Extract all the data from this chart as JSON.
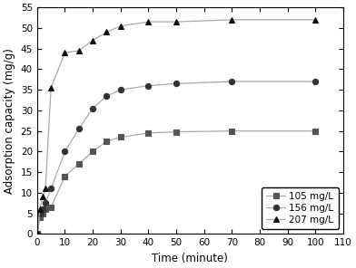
{
  "series": [
    {
      "label": "105 mg/L",
      "marker": "s",
      "color": "#555555",
      "x": [
        0,
        1,
        2,
        3,
        5,
        10,
        15,
        20,
        25,
        30,
        40,
        50,
        70,
        100
      ],
      "y": [
        0,
        4.0,
        5.0,
        6.0,
        6.5,
        14.0,
        17.0,
        20.0,
        22.5,
        23.5,
        24.5,
        24.8,
        25.0,
        25.0
      ]
    },
    {
      "label": "156 mg/L",
      "marker": "o",
      "color": "#333333",
      "x": [
        0,
        1,
        2,
        3,
        5,
        10,
        15,
        20,
        25,
        30,
        40,
        50,
        70,
        100
      ],
      "y": [
        0,
        5.0,
        6.0,
        7.5,
        11.0,
        20.0,
        25.5,
        30.5,
        33.5,
        35.0,
        36.0,
        36.5,
        37.0,
        37.0
      ]
    },
    {
      "label": "207 mg/L",
      "marker": "^",
      "color": "#111111",
      "x": [
        0,
        1,
        2,
        3,
        5,
        10,
        15,
        20,
        25,
        30,
        40,
        50,
        70,
        100
      ],
      "y": [
        0,
        6.0,
        9.0,
        11.0,
        35.5,
        44.0,
        44.5,
        47.0,
        49.0,
        50.5,
        51.5,
        51.5,
        52.0,
        52.0
      ]
    }
  ],
  "xlabel": "Time (minute)",
  "ylabel": "Adsorption capacity (mg/g)",
  "xlim": [
    0,
    110
  ],
  "ylim": [
    0,
    55
  ],
  "xticks": [
    0,
    10,
    20,
    30,
    40,
    50,
    60,
    70,
    80,
    90,
    100,
    110
  ],
  "yticks": [
    0,
    5,
    10,
    15,
    20,
    25,
    30,
    35,
    40,
    45,
    50,
    55
  ],
  "legend_loc": "lower right",
  "figsize": [
    3.92,
    2.96
  ],
  "dpi": 100,
  "line_color": "#aaaaaa",
  "marker_size": 4.5,
  "line_width": 0.9
}
